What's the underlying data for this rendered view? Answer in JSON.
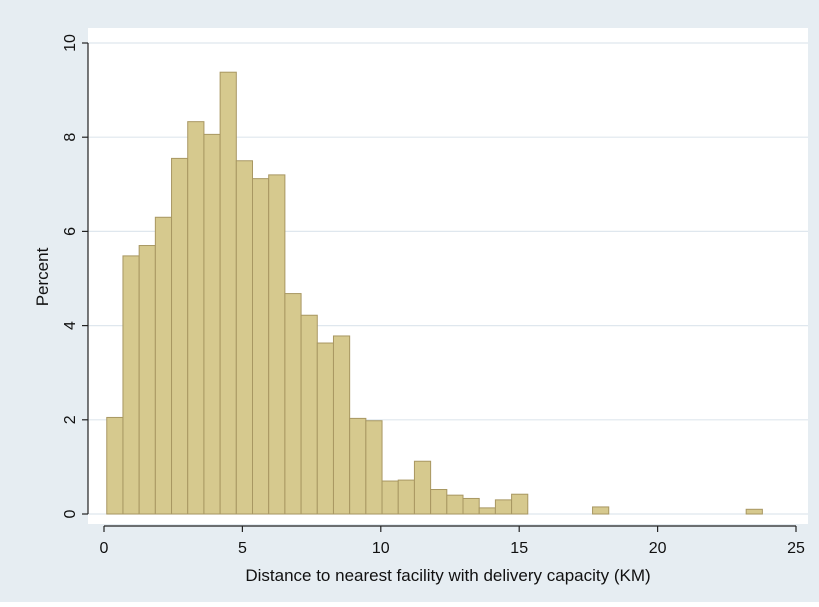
{
  "chart_data": {
    "type": "bar",
    "title": "",
    "xlabel": "Distance to nearest facility with delivery capacity (KM)",
    "ylabel": "Percent",
    "xlim": [
      0,
      25
    ],
    "ylim": [
      0,
      10
    ],
    "xticks": [
      "0",
      "5",
      "10",
      "15",
      "20",
      "25"
    ],
    "yticks": [
      "0",
      "2",
      "4",
      "6",
      "8",
      "10"
    ],
    "grid": true,
    "legend": "none",
    "bin_width": 0.585,
    "bins": [
      {
        "x": 0.1,
        "value": 2.05
      },
      {
        "x": 0.685,
        "value": 5.48
      },
      {
        "x": 1.27,
        "value": 5.7
      },
      {
        "x": 1.855,
        "value": 6.3
      },
      {
        "x": 2.44,
        "value": 7.55
      },
      {
        "x": 3.025,
        "value": 8.33
      },
      {
        "x": 3.61,
        "value": 8.06
      },
      {
        "x": 4.195,
        "value": 9.38
      },
      {
        "x": 4.78,
        "value": 7.5
      },
      {
        "x": 5.365,
        "value": 7.12
      },
      {
        "x": 5.95,
        "value": 7.2
      },
      {
        "x": 6.535,
        "value": 4.68
      },
      {
        "x": 7.12,
        "value": 4.22
      },
      {
        "x": 7.705,
        "value": 3.63
      },
      {
        "x": 8.29,
        "value": 3.78
      },
      {
        "x": 8.875,
        "value": 2.03
      },
      {
        "x": 9.46,
        "value": 1.98
      },
      {
        "x": 10.045,
        "value": 0.7
      },
      {
        "x": 10.63,
        "value": 0.72
      },
      {
        "x": 11.215,
        "value": 1.12
      },
      {
        "x": 11.8,
        "value": 0.52
      },
      {
        "x": 12.385,
        "value": 0.4
      },
      {
        "x": 12.97,
        "value": 0.33
      },
      {
        "x": 13.555,
        "value": 0.13
      },
      {
        "x": 14.14,
        "value": 0.3
      },
      {
        "x": 14.725,
        "value": 0.42
      },
      {
        "x": 17.65,
        "value": 0.15
      },
      {
        "x": 23.2,
        "value": 0.1
      }
    ],
    "colors": {
      "outer_background": "#e6edf2",
      "plot_background": "#ffffff",
      "bar_fill": "#d6c98e",
      "bar_stroke": "#a89762",
      "grid": "#dfe7ee"
    }
  }
}
